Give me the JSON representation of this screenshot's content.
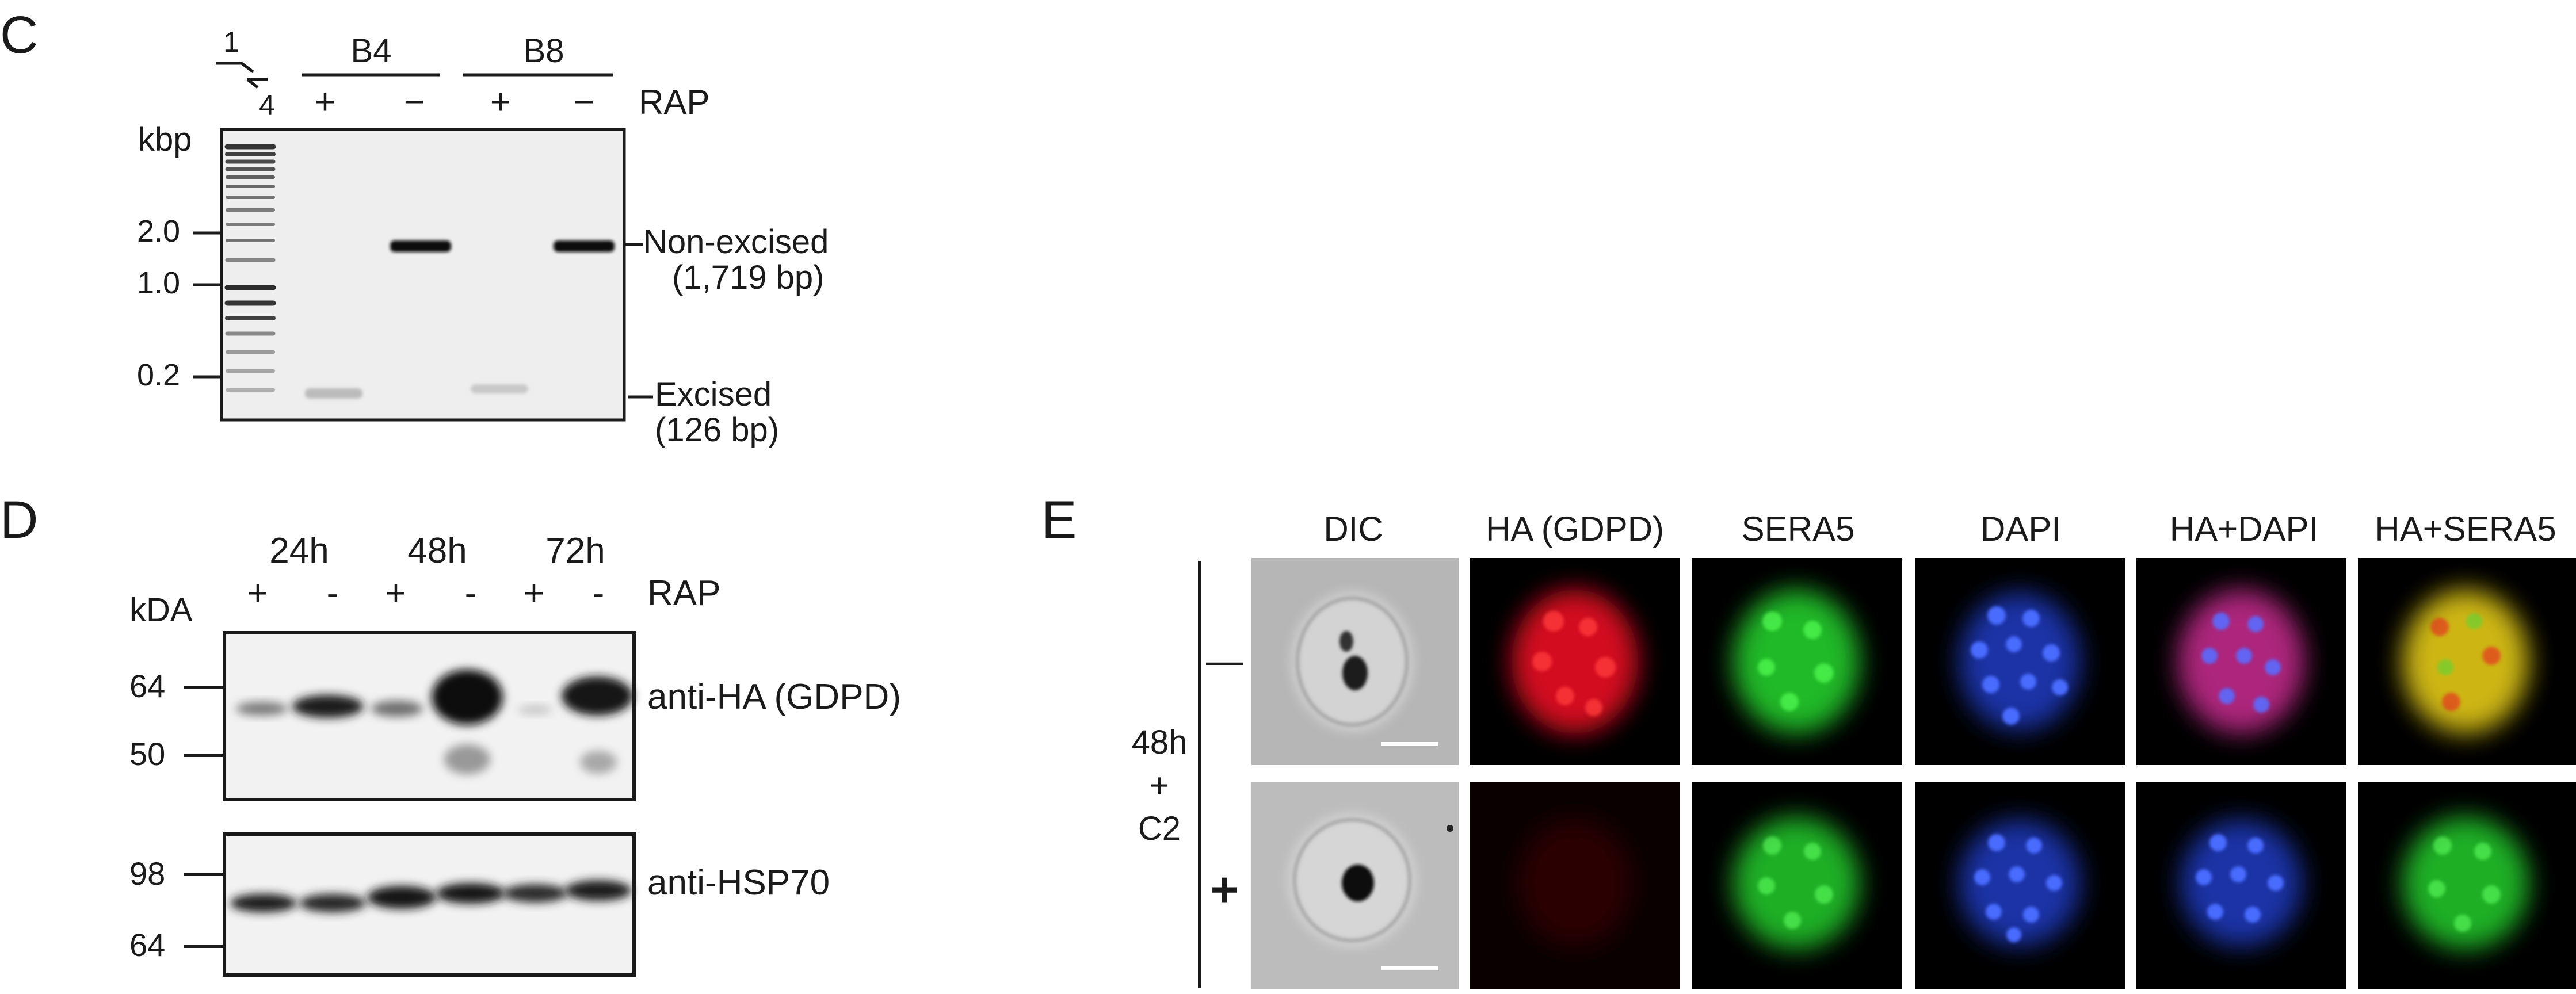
{
  "panelC": {
    "letter": "C",
    "ladder_label_top": "1",
    "ladder_label_bottom": "4",
    "group_b4": "B4",
    "group_b8": "B8",
    "lane_signs": [
      "+",
      "−",
      "+",
      "−"
    ],
    "treatment": "RAP",
    "unit": "kbp",
    "markers": [
      "2.0",
      "1.0",
      "0.2"
    ],
    "band_nonexcised": "Non-excised",
    "band_nonexcised_size": "(1,719 bp)",
    "band_excised": "Excised",
    "band_excised_size": "(126 bp)"
  },
  "panelD": {
    "letter": "D",
    "timepoints": [
      "24h",
      "48h",
      "72h"
    ],
    "lane_signs": [
      "+",
      "-",
      "+",
      "-",
      "+",
      "-"
    ],
    "treatment": "RAP",
    "unit": "kDA",
    "blot1_markers": [
      "64",
      "50"
    ],
    "blot1_label": "anti-HA (GDPD)",
    "blot2_markers": [
      "98",
      "64"
    ],
    "blot2_label": "anti-HSP70"
  },
  "panelE": {
    "letter": "E",
    "channels": [
      "DIC",
      "HA (GDPD)",
      "SERA5",
      "DAPI",
      "HA+DAPI",
      "HA+SERA5"
    ],
    "row_label_line1": "48h",
    "row_label_line2": "+",
    "row_label_line3": "C2",
    "row_signs": [
      "—",
      "+"
    ],
    "colors": {
      "red": "#e01020",
      "green": "#22c32a",
      "blue": "#2440d0",
      "magenta": "#c02a8a",
      "yellow": "#d8c014"
    }
  }
}
